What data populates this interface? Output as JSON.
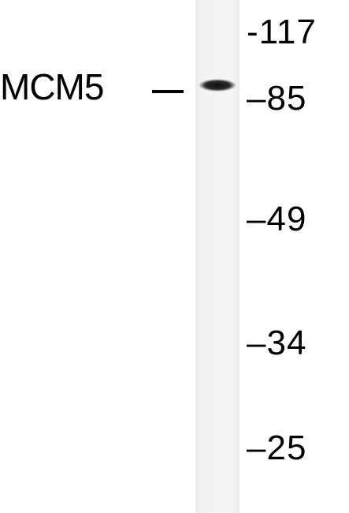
{
  "target": {
    "name": "MCM5",
    "band_marker_dash": "—"
  },
  "markers": [
    {
      "label": "-117",
      "kda": 117
    },
    {
      "label": "–85",
      "kda": 85
    },
    {
      "label": "–49",
      "kda": 49
    },
    {
      "label": "–34",
      "kda": 34
    },
    {
      "label": "–25",
      "kda": 25
    }
  ],
  "colors": {
    "background": "#ffffff",
    "lane": "#f2f2f2",
    "band": "#1a1a1a",
    "text": "#000000"
  }
}
